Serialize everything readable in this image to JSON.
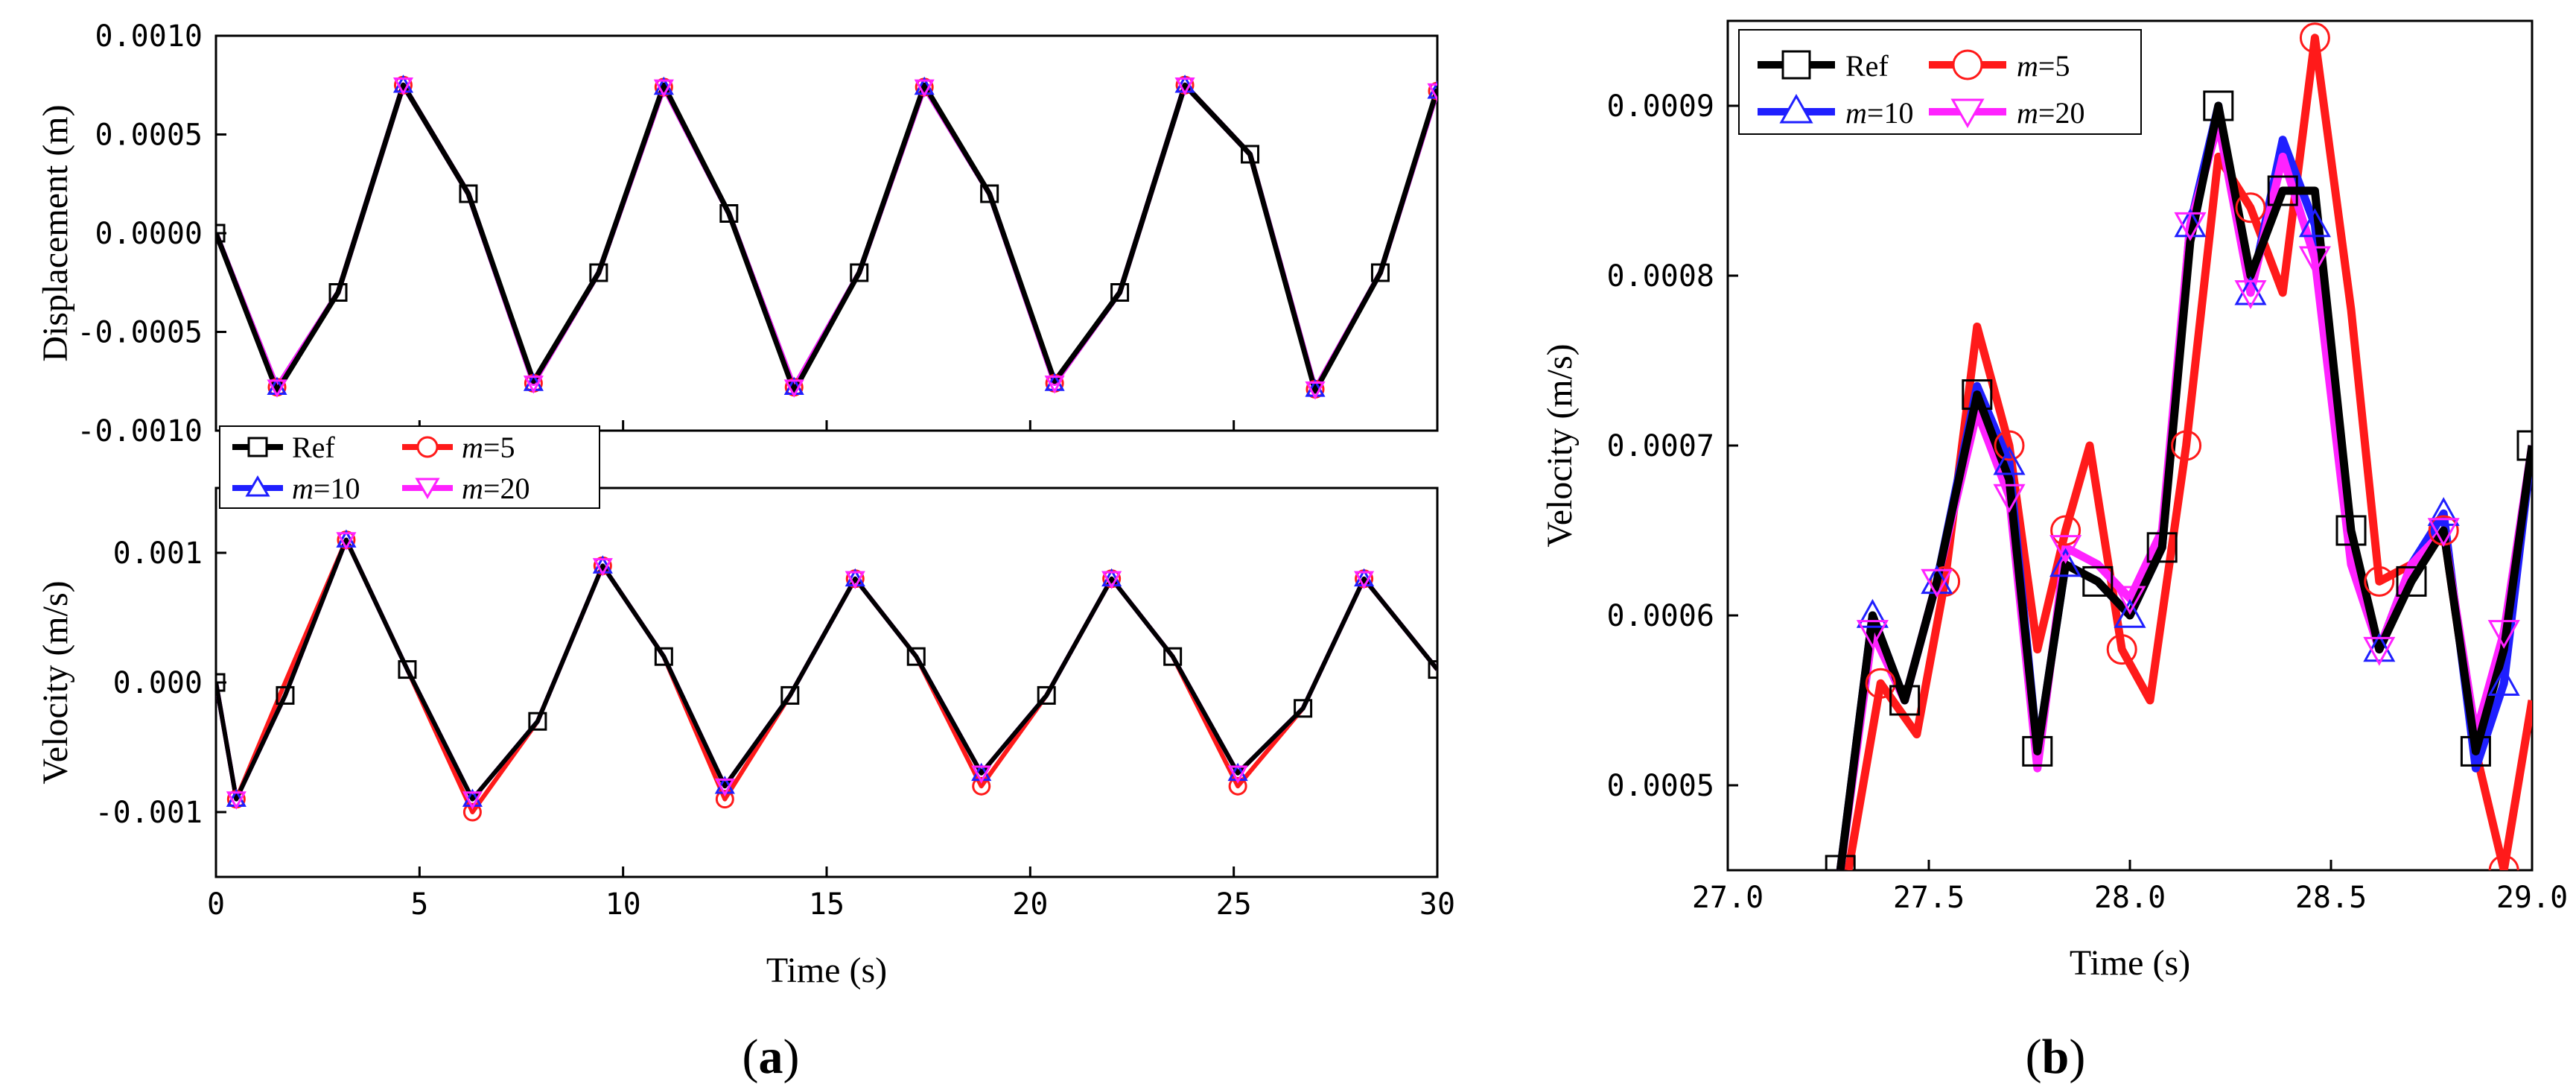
{
  "figure": {
    "panel_a_label_open": "(",
    "panel_a_label_letter": "a",
    "panel_a_label_close": ")",
    "panel_b_label_open": "(",
    "panel_b_label_letter": "b",
    "panel_b_label_close": ")"
  },
  "colors": {
    "ref": "#000000",
    "m5": "#ff1a1a",
    "m10": "#1f1fff",
    "m20": "#ff22ff"
  },
  "chart_data": [
    {
      "id": "a-displacement",
      "type": "line",
      "xlabel": "",
      "ylabel": "Displacement (m)",
      "xlim": [
        0,
        30
      ],
      "ylim": [
        -0.001,
        0.001
      ],
      "xticks": [
        0,
        5,
        10,
        15,
        20,
        25,
        30
      ],
      "yticks": [
        -0.001,
        -0.0005,
        0.0,
        0.0005,
        0.001
      ],
      "ytick_labels": [
        "-0.0010",
        "-0.0005",
        "0.0000",
        "0.0005",
        "0.0010"
      ],
      "series": [
        {
          "name": "Ref",
          "x": [
            0,
            1.5,
            3,
            4.6,
            6.2,
            7.8,
            9.4,
            11,
            12.6,
            14.2,
            15.8,
            17.4,
            19,
            20.6,
            22.2,
            23.8,
            25.4,
            27,
            28.6,
            30
          ],
          "y": [
            0,
            -0.0008,
            -0.0003,
            0.00075,
            0.0002,
            -0.00075,
            -0.0002,
            0.00075,
            0.0001,
            -0.0008,
            -0.0002,
            0.00075,
            0.0002,
            -0.00075,
            -0.0003,
            0.00075,
            0.0004,
            -0.0008,
            -0.0002,
            0.00073
          ]
        },
        {
          "name": "m=5",
          "x": [
            0,
            1.5,
            3,
            4.6,
            6.2,
            7.8,
            9.4,
            11,
            12.6,
            14.2,
            15.8,
            17.4,
            19,
            20.6,
            22.2,
            23.8,
            25.4,
            27,
            28.6,
            30
          ],
          "y": [
            0,
            -0.00078,
            -0.0003,
            0.00075,
            0.0002,
            -0.00076,
            -0.0002,
            0.00074,
            0.0001,
            -0.00078,
            -0.0002,
            0.00074,
            0.0002,
            -0.00076,
            -0.0003,
            0.00075,
            0.0004,
            -0.00079,
            -0.0002,
            0.00072
          ]
        },
        {
          "name": "m=10",
          "x": [
            0,
            1.5,
            3,
            4.6,
            6.2,
            7.8,
            9.4,
            11,
            12.6,
            14.2,
            15.8,
            17.4,
            19,
            20.6,
            22.2,
            23.8,
            25.4,
            27,
            28.6,
            30
          ],
          "y": [
            0,
            -0.00078,
            -0.0003,
            0.00075,
            0.0002,
            -0.00076,
            -0.0002,
            0.00074,
            0.0001,
            -0.00078,
            -0.0002,
            0.00074,
            0.0002,
            -0.00076,
            -0.0003,
            0.00075,
            0.0004,
            -0.00079,
            -0.0002,
            0.00072
          ]
        },
        {
          "name": "m=20",
          "x": [
            0,
            1.5,
            3,
            4.6,
            6.2,
            7.8,
            9.4,
            11,
            12.6,
            14.2,
            15.8,
            17.4,
            19,
            20.6,
            22.2,
            23.8,
            25.4,
            27,
            28.6,
            30
          ],
          "y": [
            0,
            -0.00078,
            -0.0003,
            0.00075,
            0.0002,
            -0.00076,
            -0.0002,
            0.00074,
            0.0001,
            -0.00078,
            -0.0002,
            0.00074,
            0.0002,
            -0.00076,
            -0.0003,
            0.00075,
            0.0004,
            -0.00079,
            -0.0002,
            0.00072
          ]
        }
      ],
      "legend": {
        "position": "bottom-left, between panels",
        "entries": [
          "Ref",
          "m=5",
          "m=10",
          "m=20"
        ]
      }
    },
    {
      "id": "a-velocity",
      "type": "line",
      "xlabel": "Time (s)",
      "ylabel": "Velocity (m/s)",
      "xlim": [
        0,
        30
      ],
      "ylim": [
        -0.0015,
        0.0015
      ],
      "xticks": [
        0,
        5,
        10,
        15,
        20,
        25,
        30
      ],
      "xtick_labels": [
        "0",
        "5",
        "10",
        "15",
        "20",
        "25",
        "30"
      ],
      "yticks": [
        -0.001,
        0.0,
        0.001
      ],
      "ytick_labels": [
        "-0.001",
        "0.000",
        "0.001"
      ],
      "series": [
        {
          "name": "Ref",
          "x": [
            0,
            0.5,
            1.7,
            3.2,
            4.7,
            6.3,
            7.9,
            9.5,
            11.0,
            12.5,
            14.1,
            15.7,
            17.2,
            18.8,
            20.4,
            22.0,
            23.5,
            25.1,
            26.7,
            28.2,
            30
          ],
          "y": [
            0,
            -0.0009,
            -0.0001,
            0.0011,
            0.0001,
            -0.0009,
            -0.0003,
            0.0009,
            0.0002,
            -0.0008,
            -0.0001,
            0.0008,
            0.0002,
            -0.0007,
            -0.0001,
            0.0008,
            0.0002,
            -0.0007,
            -0.0002,
            0.0008,
            0.0001
          ]
        },
        {
          "name": "m=5",
          "x": [
            0,
            0.5,
            1.7,
            3.2,
            4.7,
            6.3,
            7.9,
            9.5,
            11.0,
            12.5,
            14.1,
            15.7,
            17.2,
            18.8,
            20.4,
            22.0,
            23.5,
            25.1,
            26.7,
            28.2,
            30
          ],
          "y": [
            0,
            -0.0009,
            0.0,
            0.0011,
            0.0001,
            -0.001,
            -0.0003,
            0.0009,
            0.0002,
            -0.0009,
            -0.0001,
            0.0008,
            0.0002,
            -0.0008,
            -0.0001,
            0.0008,
            0.0002,
            -0.0008,
            -0.0002,
            0.0008,
            0.0001
          ]
        },
        {
          "name": "m=10",
          "x": [
            0,
            0.5,
            1.7,
            3.2,
            4.7,
            6.3,
            7.9,
            9.5,
            11.0,
            12.5,
            14.1,
            15.7,
            17.2,
            18.8,
            20.4,
            22.0,
            23.5,
            25.1,
            26.7,
            28.2,
            30
          ],
          "y": [
            0,
            -0.0009,
            -0.0001,
            0.0011,
            0.0001,
            -0.0009,
            -0.0003,
            0.0009,
            0.0002,
            -0.0008,
            -0.0001,
            0.0008,
            0.0002,
            -0.0007,
            -0.0001,
            0.0008,
            0.0002,
            -0.0007,
            -0.0002,
            0.0008,
            0.0001
          ]
        },
        {
          "name": "m=20",
          "x": [
            0,
            0.5,
            1.7,
            3.2,
            4.7,
            6.3,
            7.9,
            9.5,
            11.0,
            12.5,
            14.1,
            15.7,
            17.2,
            18.8,
            20.4,
            22.0,
            23.5,
            25.1,
            26.7,
            28.2,
            30
          ],
          "y": [
            0,
            -0.0009,
            -0.0001,
            0.0011,
            0.0001,
            -0.0009,
            -0.0003,
            0.0009,
            0.0002,
            -0.0008,
            -0.0001,
            0.0008,
            0.0002,
            -0.0007,
            -0.0001,
            0.0008,
            0.0002,
            -0.0007,
            -0.0002,
            0.0008,
            0.0001
          ]
        }
      ]
    },
    {
      "id": "b-velocity-zoom",
      "type": "line",
      "xlabel": "Time (s)",
      "ylabel": "Velocity (m/s)",
      "xlim": [
        27.0,
        29.0
      ],
      "ylim": [
        0.00045,
        0.00095
      ],
      "xticks": [
        27.0,
        27.5,
        28.0,
        28.5,
        29.0
      ],
      "xtick_labels": [
        "27.0",
        "27.5",
        "28.0",
        "28.5",
        "29.0"
      ],
      "yticks": [
        0.0005,
        0.0006,
        0.0007,
        0.0008,
        0.0009
      ],
      "ytick_labels": [
        "0.0005",
        "0.0006",
        "0.0007",
        "0.0008",
        "0.0009"
      ],
      "series": [
        {
          "name": "Ref",
          "x": [
            27.28,
            27.36,
            27.44,
            27.52,
            27.62,
            27.7,
            27.77,
            27.84,
            27.92,
            28.0,
            28.08,
            28.15,
            28.22,
            28.3,
            28.38,
            28.46,
            28.55,
            28.62,
            28.7,
            28.78,
            28.86,
            28.93,
            29.0
          ],
          "y": [
            0.00045,
            0.0006,
            0.00055,
            0.00062,
            0.00073,
            0.00068,
            0.00052,
            0.00063,
            0.00062,
            0.0006,
            0.00064,
            0.00082,
            0.0009,
            0.0008,
            0.00085,
            0.00085,
            0.00065,
            0.00058,
            0.00062,
            0.00065,
            0.00052,
            0.00058,
            0.0007
          ]
        },
        {
          "name": "m=5",
          "x": [
            27.3,
            27.38,
            27.47,
            27.54,
            27.62,
            27.7,
            27.77,
            27.84,
            27.9,
            27.98,
            28.05,
            28.14,
            28.22,
            28.3,
            28.38,
            28.46,
            28.55,
            28.62,
            28.7,
            28.78,
            28.86,
            28.93,
            29.0
          ],
          "y": [
            0.00045,
            0.00056,
            0.00053,
            0.00062,
            0.00077,
            0.0007,
            0.00058,
            0.00065,
            0.0007,
            0.00058,
            0.00055,
            0.0007,
            0.00087,
            0.00084,
            0.00079,
            0.00094,
            0.00078,
            0.00062,
            0.00063,
            0.00065,
            0.00052,
            0.00045,
            0.00055
          ]
        },
        {
          "name": "m=10",
          "x": [
            27.28,
            27.36,
            27.44,
            27.52,
            27.62,
            27.7,
            27.77,
            27.84,
            27.92,
            28.0,
            28.08,
            28.15,
            28.22,
            28.3,
            28.38,
            28.46,
            28.55,
            28.62,
            28.7,
            28.78,
            28.86,
            28.93,
            29.0
          ],
          "y": [
            0.00045,
            0.0006,
            0.00055,
            0.00062,
            0.000735,
            0.00069,
            0.00052,
            0.00063,
            0.00062,
            0.0006,
            0.00064,
            0.00083,
            0.0009,
            0.00079,
            0.00088,
            0.00083,
            0.00064,
            0.00058,
            0.00063,
            0.00066,
            0.00051,
            0.00056,
            0.0007
          ]
        },
        {
          "name": "m=20",
          "x": [
            27.28,
            27.36,
            27.44,
            27.52,
            27.62,
            27.7,
            27.77,
            27.84,
            27.92,
            28.0,
            28.08,
            28.15,
            28.22,
            28.3,
            28.38,
            28.46,
            28.55,
            28.62,
            28.7,
            28.78,
            28.86,
            28.93,
            29.0
          ],
          "y": [
            0.00045,
            0.00059,
            0.00055,
            0.00062,
            0.00072,
            0.00067,
            0.00051,
            0.00064,
            0.00063,
            0.00061,
            0.00065,
            0.00083,
            0.00089,
            0.00079,
            0.00087,
            0.00081,
            0.00063,
            0.00058,
            0.00063,
            0.00065,
            0.00053,
            0.00059,
            0.0007
          ]
        }
      ],
      "legend": {
        "position": "top-left",
        "entries": [
          "Ref",
          "m=5",
          "m=10",
          "m=20"
        ]
      }
    }
  ]
}
